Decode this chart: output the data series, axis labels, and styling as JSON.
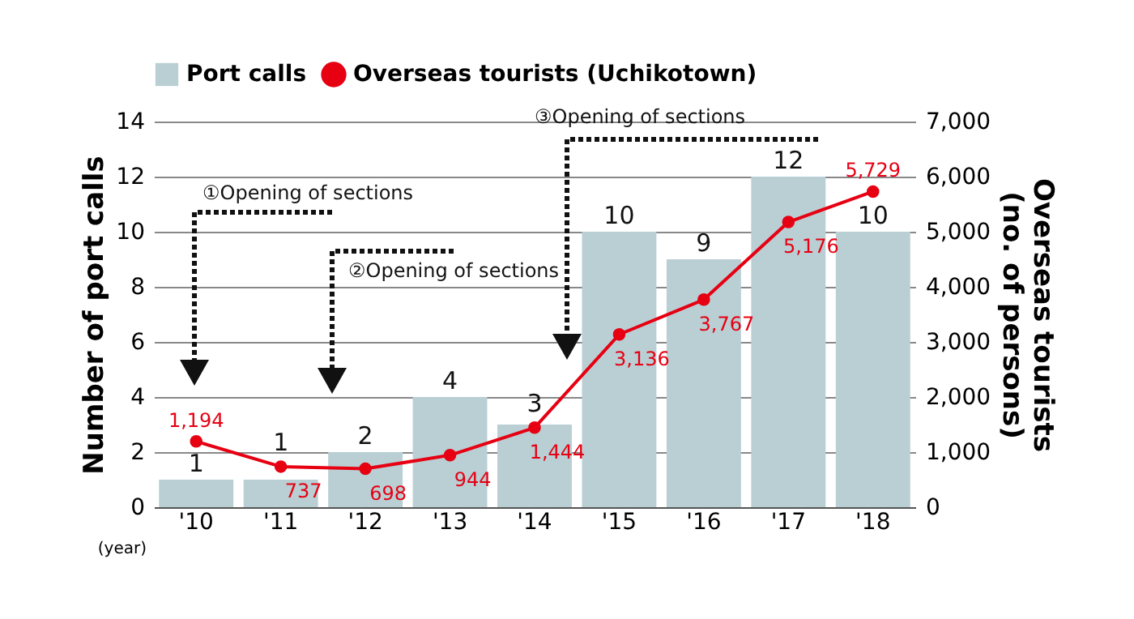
{
  "chart_data": {
    "type": "bar",
    "categories": [
      "'10",
      "'11",
      "'12",
      "'13",
      "'14",
      "'15",
      "'16",
      "'17",
      "'18"
    ],
    "xlabel": "(year)",
    "ylabel": "Number of port calls",
    "y2label": "Overseas tourists\n(no. of persons)",
    "series": [
      {
        "name": "Port calls",
        "color": "#b9cfd4",
        "values": [
          1,
          1,
          2,
          4,
          3,
          10,
          9,
          12,
          10
        ]
      },
      {
        "name": "Overseas tourists (Uchikotown)",
        "type": "line",
        "axis": "y2",
        "color": "#e60012",
        "marker": "circle",
        "values": [
          1194,
          737,
          698,
          944,
          1444,
          3136,
          3767,
          5176,
          5729
        ],
        "value_labels": [
          "1,194",
          "737",
          "698",
          "944",
          "1,444",
          "3,136",
          "3,767",
          "5,176",
          "5,729"
        ]
      }
    ],
    "ylim": [
      0,
      14
    ],
    "yticks": [
      0,
      2,
      4,
      6,
      8,
      10,
      12,
      14
    ],
    "y2lim": [
      0,
      7000
    ],
    "y2ticks": [
      0,
      {
        "value": 1000,
        "label": "1,000"
      },
      {
        "value": 2000,
        "label": "2,000"
      },
      {
        "value": 3000,
        "label": "3,000"
      },
      {
        "value": 4000,
        "label": "4,000"
      },
      {
        "value": 5000,
        "label": "5,000"
      },
      {
        "value": 6000,
        "label": "6,000"
      },
      {
        "value": 7000,
        "label": "7,000"
      }
    ],
    "grid": "y",
    "legend": "top",
    "data_labels": true,
    "annotations": [
      "①Opening of sections",
      "②Opening of sections",
      "③Opening of sections"
    ]
  }
}
